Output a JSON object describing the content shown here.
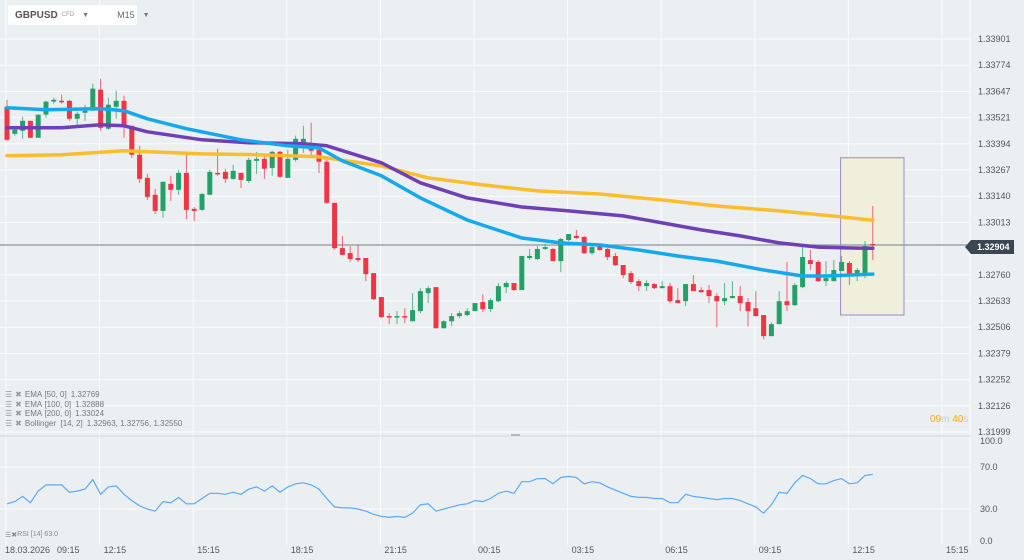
{
  "header": {
    "symbol": "GBPUSD",
    "instrument_type": "CFD",
    "timeframe": "M15"
  },
  "colors": {
    "bull": "#26a069",
    "bear": "#ef3543",
    "ema50": "#14a8ef",
    "ema100": "#6e3fb5",
    "ema200": "#fbbc2e",
    "rsi": "#5aaaf5",
    "highlight_fill": "#f0efdc",
    "highlight_border": "#9b87d2",
    "timer": "#f5a623"
  },
  "legend": [
    {
      "label": "EMA",
      "params": "[50, 0]",
      "value": "1.32769"
    },
    {
      "label": "EMA",
      "params": "[100, 0]",
      "value": "1.32888"
    },
    {
      "label": "EMA",
      "params": "[200, 0]",
      "value": "1.33024"
    },
    {
      "label": "Bollinger",
      "params": "[14, 2]",
      "value": "1.32963,  1.32756,  1.32550"
    }
  ],
  "rsi_legend": {
    "label": "RSI",
    "params": "[14]",
    "value": "63.0"
  },
  "current_price": "1.32904",
  "timer": {
    "minutes": "09",
    "m": "m",
    "seconds": "40",
    "s": "s"
  },
  "chart_data": [
    {
      "type": "candlestick",
      "title": "",
      "price_ticks": [
        "1.33901",
        "1.33774",
        "1.33647",
        "1.33521",
        "1.33394",
        "1.33267",
        "1.33140",
        "1.33013",
        "1.32760",
        "1.32633",
        "1.32506",
        "1.32379",
        "1.32252",
        "1.32126",
        "1.31999"
      ],
      "ylim": [
        1.31999,
        1.33901
      ],
      "time_labels": [
        "18.03.2026",
        "09:15",
        "12:15",
        "15:15",
        "18:15",
        "21:15",
        "00:15",
        "03:15",
        "06:15",
        "09:15",
        "12:15",
        "15:15"
      ],
      "first_candle_time": "09:15",
      "interval_minutes": 15,
      "grid": true,
      "ohlc": [
        [
          1.33573,
          1.33607,
          1.33408,
          1.33413
        ],
        [
          1.33442,
          1.33481,
          1.33433,
          1.33462
        ],
        [
          1.33457,
          1.33525,
          1.33418,
          1.33505
        ],
        [
          1.33505,
          1.33505,
          1.33423,
          1.33423
        ],
        [
          1.33423,
          1.33535,
          1.33423,
          1.33535
        ],
        [
          1.33535,
          1.33602,
          1.3352,
          1.33598
        ],
        [
          1.33598,
          1.33617,
          1.33588,
          1.33607
        ],
        [
          1.33602,
          1.33632,
          1.33588,
          1.33598
        ],
        [
          1.33602,
          1.33607,
          1.33505,
          1.33515
        ],
        [
          1.33515,
          1.33549,
          1.33486,
          1.33539
        ],
        [
          1.33544,
          1.33583,
          1.33505,
          1.33554
        ],
        [
          1.33554,
          1.33685,
          1.33554,
          1.33661
        ],
        [
          1.33656,
          1.33709,
          1.33457,
          1.33471
        ],
        [
          1.33467,
          1.33617,
          1.33462,
          1.33583
        ],
        [
          1.33573,
          1.33651,
          1.33515,
          1.33602
        ],
        [
          1.33602,
          1.33627,
          1.33423,
          1.33476
        ],
        [
          1.33481,
          1.33481,
          1.33326,
          1.33341
        ],
        [
          1.33341,
          1.33384,
          1.33205,
          1.33224
        ],
        [
          1.33229,
          1.33248,
          1.33122,
          1.33137
        ],
        [
          1.33147,
          1.33176,
          1.33054,
          1.33069
        ],
        [
          1.33069,
          1.3321,
          1.33035,
          1.3321
        ],
        [
          1.332,
          1.33239,
          1.33117,
          1.33171
        ],
        [
          1.33171,
          1.33268,
          1.33147,
          1.33253
        ],
        [
          1.33253,
          1.3335,
          1.3303,
          1.33074
        ],
        [
          1.33079,
          1.33088,
          1.3302,
          1.33069
        ],
        [
          1.33074,
          1.33156,
          1.33069,
          1.33151
        ],
        [
          1.33147,
          1.33268,
          1.33147,
          1.33258
        ],
        [
          1.33253,
          1.3337,
          1.33239,
          1.33248
        ],
        [
          1.33258,
          1.33273,
          1.33205,
          1.33224
        ],
        [
          1.33224,
          1.33292,
          1.33219,
          1.33263
        ],
        [
          1.33253,
          1.33253,
          1.3318,
          1.33219
        ],
        [
          1.33214,
          1.33326,
          1.33205,
          1.33316
        ],
        [
          1.33311,
          1.33355,
          1.33248,
          1.33321
        ],
        [
          1.33321,
          1.33341,
          1.33224,
          1.33273
        ],
        [
          1.33277,
          1.3336,
          1.33239,
          1.33355
        ],
        [
          1.33355,
          1.3336,
          1.33229,
          1.33234
        ],
        [
          1.33229,
          1.33365,
          1.33229,
          1.33321
        ],
        [
          1.33316,
          1.33433,
          1.33307,
          1.33418
        ],
        [
          1.33389,
          1.33481,
          1.3335,
          1.33418
        ],
        [
          1.3337,
          1.33496,
          1.33326,
          1.3336
        ],
        [
          1.33365,
          1.33365,
          1.33253,
          1.33307
        ],
        [
          1.33307,
          1.33316,
          1.33103,
          1.33108
        ],
        [
          1.33108,
          1.33108,
          1.3288,
          1.32889
        ],
        [
          1.32889,
          1.32948,
          1.32856,
          1.32856
        ],
        [
          1.32865,
          1.32899,
          1.32822,
          1.32836
        ],
        [
          1.32841,
          1.32904,
          1.32822,
          1.32831
        ],
        [
          1.32841,
          1.32841,
          1.32729,
          1.32763
        ],
        [
          1.32768,
          1.32768,
          1.32637,
          1.32642
        ],
        [
          1.32652,
          1.32652,
          1.3255,
          1.32555
        ],
        [
          1.3256,
          1.32574,
          1.32521,
          1.32555
        ],
        [
          1.32555,
          1.32584,
          1.32521,
          1.3256
        ],
        [
          1.3256,
          1.32598,
          1.32526,
          1.32555
        ],
        [
          1.32535,
          1.32671,
          1.32535,
          1.32589
        ],
        [
          1.32584,
          1.32695,
          1.32574,
          1.32681
        ],
        [
          1.32671,
          1.32705,
          1.32623,
          1.32695
        ],
        [
          1.327,
          1.327,
          1.32501,
          1.32501
        ],
        [
          1.32501,
          1.3254,
          1.32501,
          1.32535
        ],
        [
          1.32535,
          1.32574,
          1.32511,
          1.3256
        ],
        [
          1.3256,
          1.32584,
          1.3255,
          1.32574
        ],
        [
          1.32565,
          1.32598,
          1.3256,
          1.32584
        ],
        [
          1.32584,
          1.32623,
          1.32584,
          1.32623
        ],
        [
          1.32628,
          1.32666,
          1.32579,
          1.32594
        ],
        [
          1.32594,
          1.32647,
          1.32579,
          1.32637
        ],
        [
          1.32632,
          1.3272,
          1.32628,
          1.32705
        ],
        [
          1.327,
          1.32729,
          1.32671,
          1.3272
        ],
        [
          1.3272,
          1.3272,
          1.32681,
          1.32686
        ],
        [
          1.32686,
          1.32851,
          1.32686,
          1.32851
        ],
        [
          1.32841,
          1.32885,
          1.32831,
          1.32851
        ],
        [
          1.32836,
          1.32899,
          1.32831,
          1.32885
        ],
        [
          1.32885,
          1.32909,
          1.3288,
          1.32894
        ],
        [
          1.32885,
          1.32889,
          1.32826,
          1.32826
        ],
        [
          1.32826,
          1.32938,
          1.32773,
          1.32933
        ],
        [
          1.32928,
          1.32957,
          1.32923,
          1.32957
        ],
        [
          1.32948,
          1.32977,
          1.32933,
          1.32938
        ],
        [
          1.32943,
          1.32948,
          1.3286,
          1.32865
        ],
        [
          1.32865,
          1.32899,
          1.32856,
          1.32894
        ],
        [
          1.32899,
          1.32909,
          1.32875,
          1.3288
        ],
        [
          1.32885,
          1.32889,
          1.32831,
          1.32846
        ],
        [
          1.32851,
          1.32865,
          1.32802,
          1.32807
        ],
        [
          1.32807,
          1.32807,
          1.32744,
          1.32759
        ],
        [
          1.32768,
          1.32778,
          1.32715,
          1.32725
        ],
        [
          1.32729,
          1.32739,
          1.32681,
          1.32705
        ],
        [
          1.32705,
          1.32734,
          1.32681,
          1.3272
        ],
        [
          1.32715,
          1.3272,
          1.32691,
          1.32695
        ],
        [
          1.32695,
          1.32729,
          1.32695,
          1.32705
        ],
        [
          1.32705,
          1.3272,
          1.32623,
          1.32632
        ],
        [
          1.32637,
          1.32695,
          1.32623,
          1.32623
        ],
        [
          1.32632,
          1.32715,
          1.32608,
          1.32715
        ],
        [
          1.32715,
          1.32759,
          1.32681,
          1.32681
        ],
        [
          1.32686,
          1.327,
          1.32671,
          1.32676
        ],
        [
          1.32686,
          1.3271,
          1.32623,
          1.32657
        ],
        [
          1.32657,
          1.32671,
          1.32506,
          1.32632
        ],
        [
          1.32632,
          1.3272,
          1.32613,
          1.32647
        ],
        [
          1.32647,
          1.32729,
          1.32647,
          1.32657
        ],
        [
          1.32657,
          1.32705,
          1.32584,
          1.32623
        ],
        [
          1.32628,
          1.32647,
          1.32511,
          1.32584
        ],
        [
          1.32598,
          1.32681,
          1.3256,
          1.3256
        ],
        [
          1.32565,
          1.32565,
          1.32448,
          1.32463
        ],
        [
          1.32463,
          1.3253,
          1.32463,
          1.32521
        ],
        [
          1.32521,
          1.32681,
          1.32521,
          1.32632
        ],
        [
          1.32632,
          1.32822,
          1.32584,
          1.32613
        ],
        [
          1.32613,
          1.3272,
          1.32608,
          1.3271
        ],
        [
          1.327,
          1.32899,
          1.32695,
          1.32846
        ],
        [
          1.32831,
          1.3288,
          1.32783,
          1.32812
        ],
        [
          1.32822,
          1.32831,
          1.32725,
          1.32729
        ],
        [
          1.32729,
          1.32826,
          1.32705,
          1.32744
        ],
        [
          1.32729,
          1.32831,
          1.32729,
          1.32783
        ],
        [
          1.32778,
          1.32851,
          1.32778,
          1.32822
        ],
        [
          1.32817,
          1.32826,
          1.3271,
          1.32759
        ],
        [
          1.32763,
          1.32793,
          1.32729,
          1.32783
        ],
        [
          1.32768,
          1.32923,
          1.32744,
          1.32899
        ],
        [
          1.32909,
          1.33093,
          1.32831,
          1.32904
        ]
      ],
      "ema50": [
        [
          0,
          1.33568
        ],
        [
          5,
          1.33559
        ],
        [
          12,
          1.33564
        ],
        [
          15,
          1.33554
        ],
        [
          18,
          1.33515
        ],
        [
          23,
          1.33467
        ],
        [
          30,
          1.33413
        ],
        [
          36,
          1.33384
        ],
        [
          40,
          1.33374
        ],
        [
          43,
          1.33311
        ],
        [
          48,
          1.33239
        ],
        [
          53,
          1.33132
        ],
        [
          59,
          1.33025
        ],
        [
          66,
          1.32938
        ],
        [
          71,
          1.32914
        ],
        [
          76,
          1.32904
        ],
        [
          81,
          1.3288
        ],
        [
          86,
          1.32851
        ],
        [
          91,
          1.32826
        ],
        [
          97,
          1.32783
        ],
        [
          102,
          1.32754
        ],
        [
          105,
          1.32754
        ],
        [
          111,
          1.32763
        ]
      ],
      "ema100": [
        [
          0,
          1.33471
        ],
        [
          7,
          1.33471
        ],
        [
          12,
          1.33486
        ],
        [
          15,
          1.33481
        ],
        [
          18,
          1.33452
        ],
        [
          25,
          1.33413
        ],
        [
          31,
          1.33399
        ],
        [
          38,
          1.33394
        ],
        [
          41,
          1.33384
        ],
        [
          48,
          1.33302
        ],
        [
          53,
          1.33205
        ],
        [
          59,
          1.33132
        ],
        [
          66,
          1.33088
        ],
        [
          72,
          1.33069
        ],
        [
          79,
          1.33045
        ],
        [
          84,
          1.33011
        ],
        [
          89,
          1.32977
        ],
        [
          94,
          1.32948
        ],
        [
          99,
          1.32914
        ],
        [
          104,
          1.32894
        ],
        [
          109,
          1.32889
        ],
        [
          111,
          1.32888
        ]
      ],
      "ema200": [
        [
          0,
          1.33336
        ],
        [
          7,
          1.33341
        ],
        [
          15,
          1.3336
        ],
        [
          25,
          1.33345
        ],
        [
          32,
          1.33341
        ],
        [
          40,
          1.33331
        ],
        [
          48,
          1.33287
        ],
        [
          54,
          1.33229
        ],
        [
          61,
          1.33195
        ],
        [
          68,
          1.33166
        ],
        [
          76,
          1.33151
        ],
        [
          84,
          1.33122
        ],
        [
          91,
          1.33093
        ],
        [
          99,
          1.33069
        ],
        [
          107,
          1.3304
        ],
        [
          111,
          1.33024
        ]
      ],
      "highlight_range": {
        "from_index": 107,
        "to_index": 115,
        "price_high": 1.33394,
        "price_low": 1.32633
      }
    },
    {
      "type": "line",
      "name": "RSI [14]",
      "y_ticks": [
        "100.0",
        "70.0",
        "30.0",
        "0.0"
      ],
      "ylim": [
        0,
        100
      ],
      "values": [
        35,
        37,
        42,
        36,
        47,
        53,
        53,
        53,
        46,
        47,
        49,
        58,
        44,
        51,
        52,
        44,
        38,
        33,
        30,
        28,
        37,
        36,
        41,
        35,
        35,
        40,
        45,
        45,
        44,
        46,
        44,
        49,
        51,
        47,
        52,
        46,
        51,
        54,
        55,
        53,
        49,
        40,
        32,
        31,
        31,
        30,
        28,
        25,
        23,
        22,
        23,
        22,
        26,
        34,
        35,
        28,
        30,
        32,
        34,
        35,
        38,
        37,
        40,
        45,
        47,
        45,
        56,
        56,
        59,
        59,
        54,
        60,
        61,
        60,
        54,
        56,
        55,
        51,
        48,
        45,
        42,
        41,
        41,
        40,
        40,
        36,
        36,
        44,
        42,
        41,
        40,
        39,
        40,
        40,
        38,
        35,
        32,
        26,
        34,
        46,
        45,
        55,
        62,
        59,
        54,
        54,
        57,
        59,
        54,
        55,
        62,
        63
      ]
    }
  ]
}
